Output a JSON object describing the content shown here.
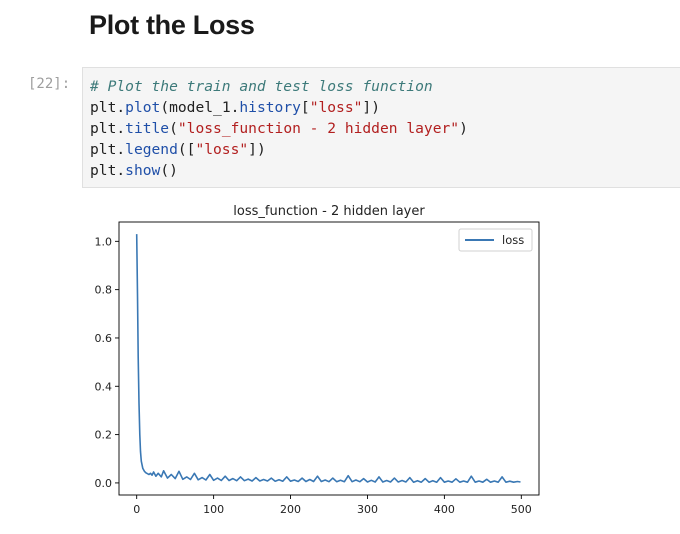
{
  "notebook": {
    "heading": "Plot the Loss",
    "cell_prompt": "[22]:",
    "code": {
      "line1": "# Plot the train and test loss function",
      "line2": {
        "a": "plt.",
        "b": "plot",
        "c": "(model_1.",
        "d": "history",
        "e": "[",
        "f": "\"loss\"",
        "g": "])"
      },
      "line3": {
        "a": "plt.",
        "b": "title",
        "c": "(",
        "d": "\"loss_function - 2 hidden layer\"",
        "e": ")"
      },
      "line4": {
        "a": "plt.",
        "b": "legend",
        "c": "([",
        "d": "\"loss\"",
        "e": "])"
      },
      "line5": {
        "a": "plt.",
        "b": "show",
        "c": "()"
      }
    }
  },
  "chart_data": {
    "type": "line",
    "title": "loss_function - 2 hidden layer",
    "xlabel": "",
    "ylabel": "",
    "xlim": [
      -23,
      523
    ],
    "ylim": [
      -0.05,
      1.08
    ],
    "xticks": [
      0,
      100,
      200,
      300,
      400,
      500
    ],
    "yticks": [
      0.0,
      0.2,
      0.4,
      0.6,
      0.8,
      1.0
    ],
    "grid": false,
    "legend": "top-right",
    "color": "#3a78b4",
    "series": [
      {
        "name": "loss",
        "x": [
          0,
          1,
          2,
          3,
          4,
          5,
          6,
          8,
          10,
          12,
          14,
          16,
          18,
          20,
          22,
          25,
          28,
          32,
          35,
          40,
          45,
          50,
          55,
          60,
          65,
          70,
          75,
          80,
          85,
          90,
          95,
          100,
          105,
          110,
          115,
          120,
          125,
          130,
          135,
          140,
          145,
          150,
          155,
          160,
          165,
          170,
          175,
          180,
          185,
          190,
          195,
          200,
          205,
          210,
          215,
          220,
          225,
          230,
          235,
          240,
          245,
          250,
          255,
          260,
          265,
          270,
          275,
          280,
          285,
          290,
          295,
          300,
          305,
          310,
          315,
          320,
          325,
          330,
          335,
          340,
          345,
          350,
          355,
          360,
          365,
          370,
          375,
          380,
          385,
          390,
          395,
          400,
          405,
          410,
          415,
          420,
          425,
          430,
          435,
          440,
          445,
          450,
          455,
          460,
          465,
          470,
          475,
          480,
          485,
          490,
          495,
          499
        ],
        "y": [
          1.03,
          0.78,
          0.52,
          0.33,
          0.2,
          0.13,
          0.09,
          0.06,
          0.048,
          0.042,
          0.038,
          0.035,
          0.04,
          0.032,
          0.045,
          0.028,
          0.04,
          0.025,
          0.05,
          0.02,
          0.035,
          0.018,
          0.048,
          0.015,
          0.025,
          0.014,
          0.04,
          0.013,
          0.022,
          0.012,
          0.035,
          0.011,
          0.02,
          0.01,
          0.028,
          0.01,
          0.018,
          0.009,
          0.025,
          0.009,
          0.016,
          0.008,
          0.022,
          0.008,
          0.014,
          0.008,
          0.02,
          0.007,
          0.013,
          0.007,
          0.025,
          0.007,
          0.012,
          0.006,
          0.02,
          0.006,
          0.014,
          0.006,
          0.028,
          0.006,
          0.012,
          0.005,
          0.02,
          0.005,
          0.011,
          0.005,
          0.03,
          0.005,
          0.012,
          0.005,
          0.018,
          0.004,
          0.011,
          0.004,
          0.025,
          0.004,
          0.01,
          0.004,
          0.02,
          0.004,
          0.01,
          0.004,
          0.022,
          0.003,
          0.009,
          0.003,
          0.018,
          0.003,
          0.009,
          0.003,
          0.022,
          0.003,
          0.008,
          0.003,
          0.017,
          0.003,
          0.008,
          0.003,
          0.028,
          0.003,
          0.008,
          0.003,
          0.015,
          0.003,
          0.008,
          0.003,
          0.025,
          0.003,
          0.007,
          0.003,
          0.006,
          0.004
        ]
      }
    ]
  }
}
